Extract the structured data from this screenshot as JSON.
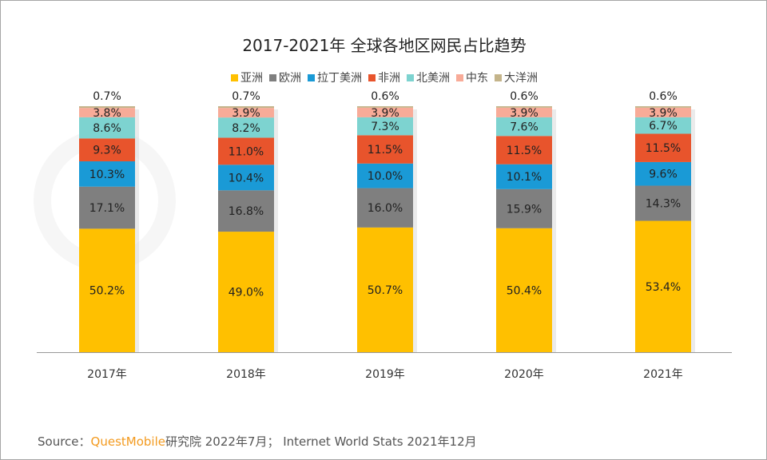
{
  "watermark": "QUESTMOBILE",
  "chart_data": {
    "type": "bar",
    "stacked": true,
    "title": "2017-2021年 全球各地区网民占比趋势",
    "categories": [
      "2017年",
      "2018年",
      "2019年",
      "2020年",
      "2021年"
    ],
    "series": [
      {
        "name": "亚洲",
        "color": "#ffc000",
        "values": [
          50.2,
          49.0,
          50.7,
          50.4,
          53.4
        ]
      },
      {
        "name": "欧洲",
        "color": "#7f7f7f",
        "values": [
          17.1,
          16.8,
          16.0,
          15.9,
          14.3
        ]
      },
      {
        "name": "拉丁美洲",
        "color": "#1a9ad6",
        "values": [
          10.3,
          10.4,
          10.0,
          10.1,
          9.6
        ]
      },
      {
        "name": "非洲",
        "color": "#e8542c",
        "values": [
          9.3,
          11.0,
          11.5,
          11.5,
          11.5
        ]
      },
      {
        "name": "北美洲",
        "color": "#7dd3d0",
        "values": [
          8.6,
          8.2,
          7.3,
          7.6,
          6.7
        ]
      },
      {
        "name": "中东",
        "color": "#f8ab98",
        "values": [
          3.8,
          3.9,
          3.9,
          3.9,
          3.9
        ]
      },
      {
        "name": "大洋洲",
        "color": "#c4b48a",
        "values": [
          0.7,
          0.7,
          0.6,
          0.6,
          0.6
        ]
      }
    ],
    "unit": "%",
    "legend": "top",
    "grid": false
  },
  "source": {
    "prefix": "Source：",
    "brand": "QuestMobile",
    "rest": "研究院 2022年7月；  Internet World Stats 2021年12月"
  }
}
